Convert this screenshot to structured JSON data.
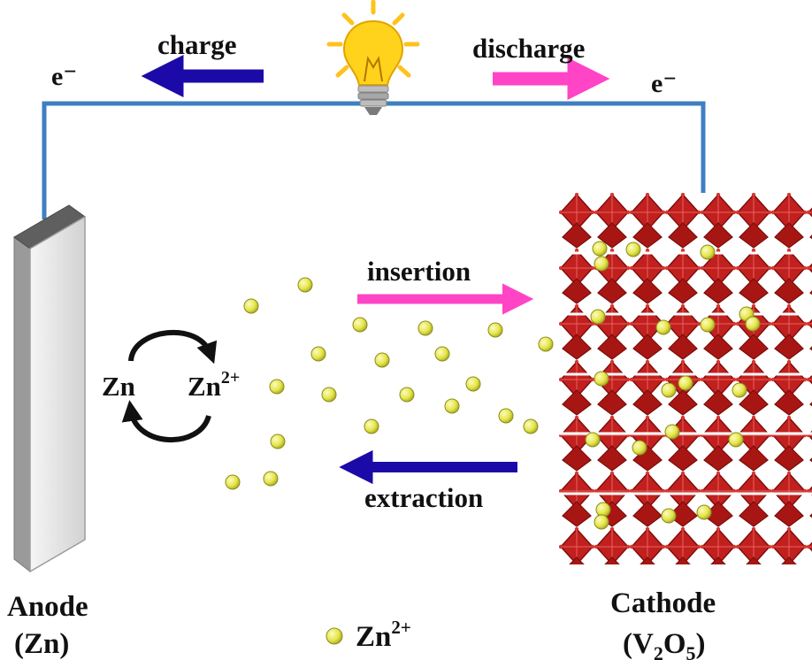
{
  "labels": {
    "charge": "charge",
    "discharge": "discharge",
    "electron_left": "e⁻",
    "electron_right": "e⁻",
    "insertion": "insertion",
    "extraction": "extraction",
    "zn": "Zn",
    "zn_ion_base": "Zn",
    "zn_ion_sup": "2+",
    "anode": "Anode",
    "anode_material": "(Zn)",
    "cathode": "Cathode",
    "cathode_material_1": "(V",
    "cathode_material_2": "O",
    "cathode_material_3": ")",
    "cathode_sub_1": "2",
    "cathode_sub_2": "5",
    "legend_ion_base": "Zn",
    "legend_ion_sup": "2+"
  },
  "colors": {
    "wire": "#3f7fc1",
    "charge_arrow": "#1c0aa8",
    "discharge_arrow": "#ff44c6",
    "insertion_arrow": "#ff44c6",
    "extraction_arrow": "#1c0aa8",
    "ion": "#eaea52",
    "ion_outline": "#8c8c1c",
    "cathode_octahedra": "#c1201e",
    "cathode_edges": "#7a0d0b",
    "anode_face": "#e9e9e9",
    "anode_top": "#6a6a6a",
    "bulb": "#ffd21c"
  },
  "icons": [
    "light-bulb-icon",
    "cycle-arrows-icon"
  ]
}
